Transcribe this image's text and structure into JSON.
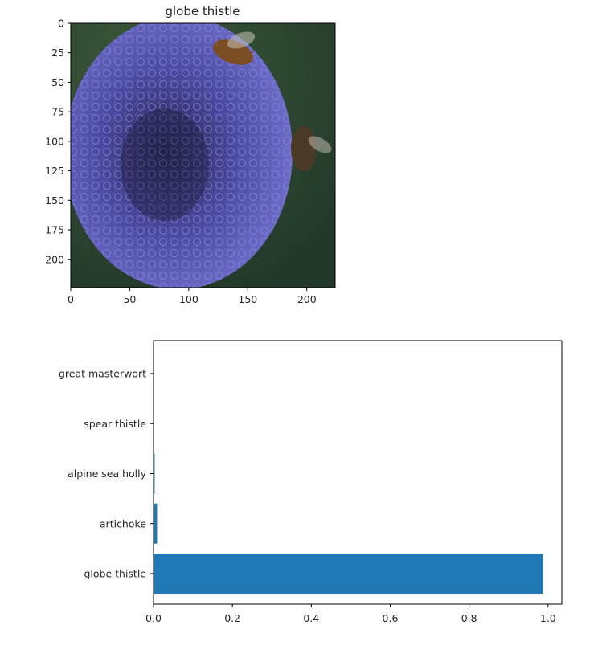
{
  "chart_data": [
    {
      "type": "image",
      "title": "globe thistle",
      "xticks": [
        0,
        50,
        100,
        150,
        200
      ],
      "yticks": [
        0,
        25,
        50,
        75,
        100,
        125,
        150,
        175,
        200
      ],
      "xlim": [
        0,
        224
      ],
      "ylim": [
        224,
        0
      ],
      "colors": {
        "background": "#2e4a2e",
        "flower": "#5b5ab8",
        "flower_dark": "#2a2650",
        "bee": "#6a4a2a"
      }
    },
    {
      "type": "bar",
      "orientation": "horizontal",
      "categories": [
        "globe thistle",
        "artichoke",
        "alpine sea holly",
        "spear thistle",
        "great masterwort"
      ],
      "values": [
        0.987,
        0.009,
        0.003,
        0.001,
        0.0005
      ],
      "xticks": [
        "0.0",
        "0.2",
        "0.4",
        "0.6",
        "0.8",
        "1.0"
      ],
      "xlim": [
        0,
        1.035
      ],
      "color": "#1f77b4"
    }
  ]
}
